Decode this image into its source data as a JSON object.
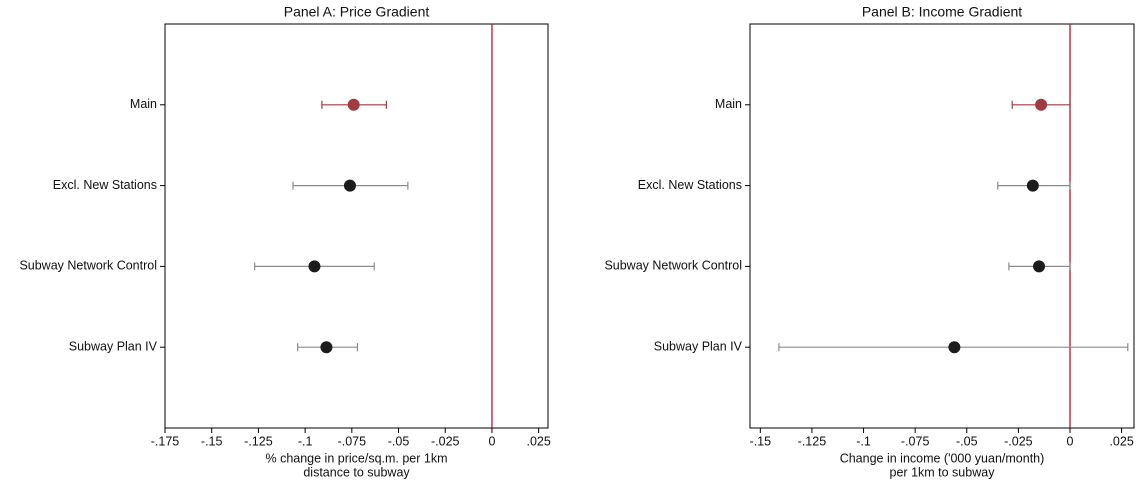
{
  "chart_data": [
    {
      "type": "errorbar",
      "title": "Panel A: Price Gradient",
      "categories": [
        "Main",
        "Excl. New Stations",
        "Subway Network Control",
        "Subway Plan IV"
      ],
      "values": [
        -0.074,
        -0.076,
        -0.095,
        -0.0886
      ],
      "ci_low": [
        -0.091,
        -0.1065,
        -0.127,
        -0.104
      ],
      "ci_high": [
        -0.0565,
        -0.045,
        -0.063,
        -0.072
      ],
      "point_colors": [
        "#a13b3f",
        "#1c1c1c",
        "#1c1c1c",
        "#1c1c1c"
      ],
      "bar_colors": [
        "#a13b3f",
        "#8c8c8c",
        "#8c8c8c",
        "#8c8c8c"
      ],
      "xlim": [
        -0.175,
        0.03
      ],
      "xticks": [
        {
          "value": -0.175,
          "label": "-.175"
        },
        {
          "value": -0.15,
          "label": "-.15"
        },
        {
          "value": -0.125,
          "label": "-.125"
        },
        {
          "value": -0.1,
          "label": "-.1"
        },
        {
          "value": -0.075,
          "label": "-.075"
        },
        {
          "value": -0.05,
          "label": "-.05"
        },
        {
          "value": -0.025,
          "label": "-.025"
        },
        0,
        {
          "value": 0.025,
          "label": ".025"
        }
      ],
      "reference_line": 0,
      "reference_color": "#c8102e",
      "xlabel": [
        "% change in price/sq.m. per 1km",
        "distance to subway"
      ]
    },
    {
      "type": "errorbar",
      "title": "Panel B: Income Gradient",
      "categories": [
        "Main",
        "Excl. New Stations",
        "Subway Network Control",
        "Subway Plan IV"
      ],
      "values": [
        -0.014,
        -0.018,
        -0.015,
        -0.056
      ],
      "ci_low": [
        -0.028,
        -0.035,
        -0.0296,
        -0.141
      ],
      "ci_high": [
        0,
        0,
        0,
        0.028
      ],
      "point_colors": [
        "#a13b3f",
        "#1c1c1c",
        "#1c1c1c",
        "#1c1c1c"
      ],
      "bar_colors": [
        "#a13b3f",
        "#8c8c8c",
        "#8c8c8c",
        "#8c8c8c"
      ],
      "xlim": [
        -0.155,
        0.031
      ],
      "xticks": [
        {
          "value": -0.15,
          "label": "-.15"
        },
        {
          "value": -0.125,
          "label": "-.125"
        },
        {
          "value": -0.1,
          "label": "-.1"
        },
        {
          "value": -0.075,
          "label": "-.075"
        },
        {
          "value": -0.05,
          "label": "-.05"
        },
        {
          "value": -0.025,
          "label": "-.025"
        },
        0,
        {
          "value": 0.025,
          "label": ".025"
        }
      ],
      "reference_line": 0,
      "reference_color": "#c8102e",
      "xlabel": [
        "Change in income ('000 yuan/month)",
        "per 1km to subway"
      ]
    }
  ]
}
